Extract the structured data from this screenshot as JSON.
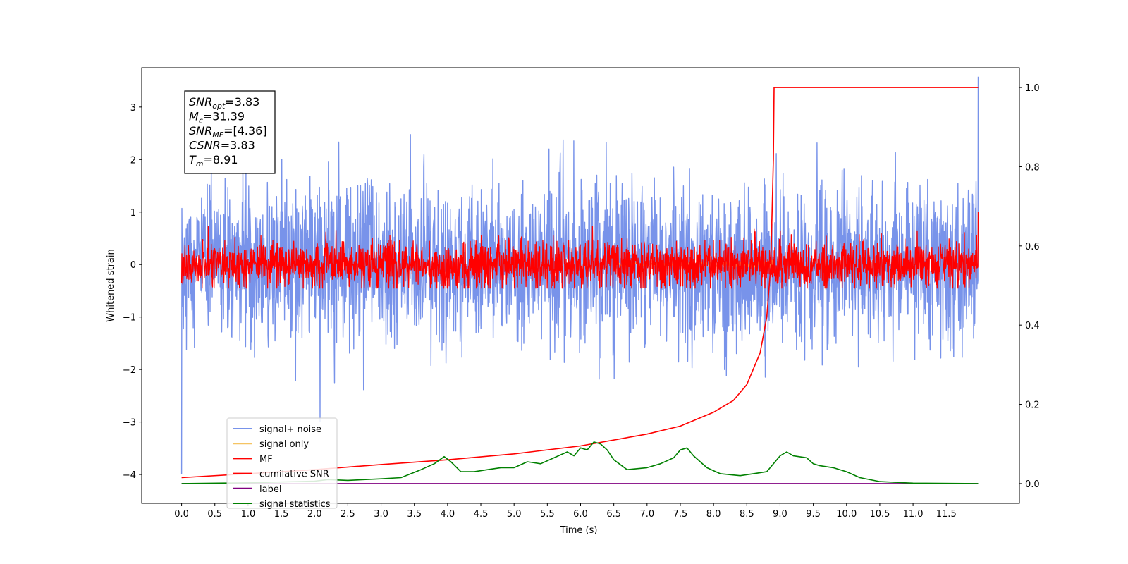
{
  "chart_data": {
    "type": "line",
    "title": "",
    "xlabel": "Time (s)",
    "ylabel": "Whitened strain",
    "xlim": [
      -0.6,
      12.6
    ],
    "ylim": [
      -4.55,
      3.75
    ],
    "ylim_right": [
      -0.05,
      1.05
    ],
    "x_ticks": [
      "0.0",
      "0.5",
      "1.0",
      "1.5",
      "2.0",
      "2.5",
      "3.0",
      "3.5",
      "4.0",
      "4.5",
      "5.0",
      "5.5",
      "6.0",
      "6.5",
      "7.0",
      "7.5",
      "8.0",
      "8.5",
      "9.0",
      "9.5",
      "10.0",
      "10.5",
      "11.0",
      "11.5"
    ],
    "y_ticks": [
      "3",
      "2",
      "1",
      "0",
      "−1",
      "−2",
      "−3",
      "−4"
    ],
    "y_ticks_right": [
      "1.0",
      "0.8",
      "0.6",
      "0.4",
      "0.2",
      "0.0"
    ],
    "grid": false,
    "legend_position": "lower-left",
    "annotation": [
      {
        "sym": "SNR",
        "sub": "opt",
        "value": "=3.83"
      },
      {
        "sym": "M",
        "sub": "c",
        "value": "=31.39"
      },
      {
        "sym": "SNR",
        "sub": "MF",
        "value": "=[4.36]"
      },
      {
        "sym": "CSNR",
        "sub": "",
        "value": "=3.83"
      },
      {
        "sym": "T",
        "sub": "m",
        "value": "=8.91"
      }
    ],
    "series": [
      {
        "name": "signal+ noise",
        "color": "#7893ea",
        "axis": "left",
        "kind": "noise",
        "std": 0.75,
        "x_range": [
          0,
          11.98
        ],
        "y_min": -4.1,
        "y_max": 3.58
      },
      {
        "name": "signal only",
        "color": "#f5c463",
        "axis": "left",
        "kind": "chirp",
        "merger_time": 8.91,
        "peak_amplitude": 0.32
      },
      {
        "name": "MF",
        "color": "#ff0000",
        "axis": "left",
        "kind": "noise",
        "std": 0.22,
        "x_range": [
          0,
          11.98
        ],
        "y_min": -0.45,
        "y_max": 1.0
      },
      {
        "name": "cumilative SNR",
        "color": "#ff0000",
        "axis": "right",
        "x": [
          0.0,
          1.0,
          2.0,
          3.0,
          4.0,
          5.0,
          6.0,
          7.0,
          7.5,
          8.0,
          8.3,
          8.5,
          8.7,
          8.8,
          8.86,
          8.9,
          8.91,
          11.98
        ],
        "y": [
          0.015,
          0.025,
          0.035,
          0.048,
          0.06,
          0.075,
          0.095,
          0.125,
          0.145,
          0.18,
          0.21,
          0.25,
          0.33,
          0.42,
          0.55,
          0.82,
          1.0,
          1.0
        ]
      },
      {
        "name": "label",
        "color": "#800080",
        "axis": "right",
        "x": [
          0.0,
          11.98
        ],
        "y": [
          0.0,
          0.0
        ]
      },
      {
        "name": "signal statistics",
        "color": "#008000",
        "axis": "right",
        "x": [
          0.0,
          1.0,
          2.0,
          2.2,
          2.5,
          3.0,
          3.3,
          3.6,
          3.8,
          3.95,
          4.05,
          4.2,
          4.4,
          4.6,
          4.8,
          5.0,
          5.2,
          5.4,
          5.6,
          5.8,
          5.9,
          6.0,
          6.1,
          6.2,
          6.3,
          6.4,
          6.5,
          6.7,
          7.0,
          7.2,
          7.4,
          7.5,
          7.6,
          7.7,
          7.9,
          8.1,
          8.4,
          8.6,
          8.8,
          9.0,
          9.1,
          9.2,
          9.4,
          9.5,
          9.6,
          9.8,
          10.0,
          10.2,
          10.5,
          11.0,
          11.98
        ],
        "y": [
          0.0,
          0.002,
          0.006,
          0.01,
          0.008,
          0.012,
          0.015,
          0.035,
          0.05,
          0.068,
          0.055,
          0.03,
          0.03,
          0.035,
          0.04,
          0.04,
          0.055,
          0.05,
          0.065,
          0.08,
          0.07,
          0.09,
          0.085,
          0.105,
          0.1,
          0.085,
          0.06,
          0.035,
          0.04,
          0.05,
          0.065,
          0.085,
          0.09,
          0.07,
          0.04,
          0.025,
          0.02,
          0.025,
          0.03,
          0.07,
          0.08,
          0.07,
          0.065,
          0.05,
          0.045,
          0.04,
          0.03,
          0.015,
          0.005,
          0.001,
          0.0
        ]
      }
    ]
  }
}
